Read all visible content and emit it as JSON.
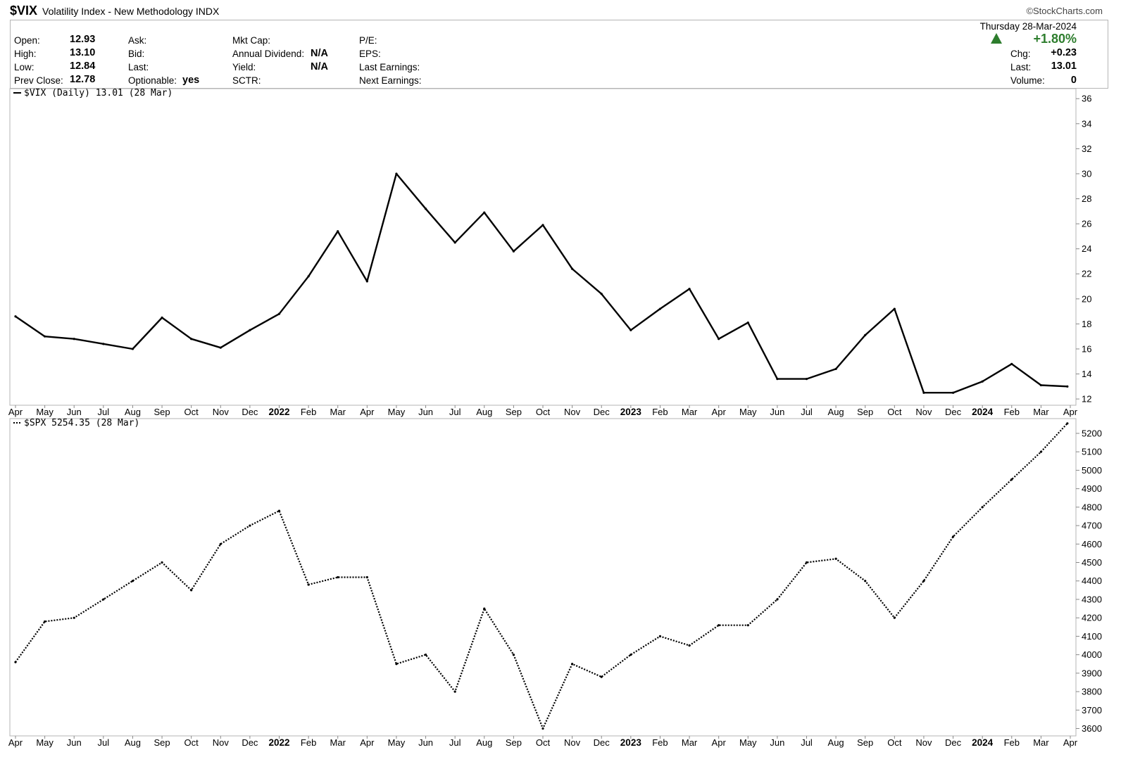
{
  "header": {
    "symbol": "$VIX",
    "description": "Volatility Index - New Methodology INDX",
    "brand": "©StockCharts.com"
  },
  "quote": {
    "date": "Thursday  28-Mar-2024",
    "change_pct": "+1.80%",
    "left": [
      {
        "label": "Open:",
        "value": "12.93"
      },
      {
        "label": "High:",
        "value": "13.10"
      },
      {
        "label": "Low:",
        "value": "12.84"
      },
      {
        "label": "Prev Close:",
        "value": "12.78"
      }
    ],
    "col2": [
      {
        "label": "Ask:",
        "value": ""
      },
      {
        "label": "Bid:",
        "value": ""
      },
      {
        "label": "Last:",
        "value": ""
      },
      {
        "label": "Optionable:",
        "value": "yes"
      }
    ],
    "col3": [
      {
        "label": "Mkt Cap:",
        "value": ""
      },
      {
        "label": "Annual Dividend:",
        "value": "N/A"
      },
      {
        "label": "Yield:",
        "value": "N/A"
      },
      {
        "label": "SCTR:",
        "value": ""
      }
    ],
    "col4": [
      {
        "label": "P/E:",
        "value": ""
      },
      {
        "label": "EPS:",
        "value": ""
      },
      {
        "label": "Last Earnings:",
        "value": ""
      },
      {
        "label": "Next Earnings:",
        "value": ""
      }
    ],
    "right": [
      {
        "label": "Chg:",
        "value": "+0.23"
      },
      {
        "label": "Last:",
        "value": "13.01"
      },
      {
        "label": "Volume:",
        "value": "0"
      }
    ]
  },
  "colors": {
    "positive": "#2d7d2d",
    "line": "#000000",
    "grid": "#b5b5b5"
  },
  "chart_data": [
    {
      "type": "line",
      "legend": "$VIX (Daily) 13.01 (28 Mar)",
      "line_style": "solid",
      "x_labels": [
        "Apr",
        "May",
        "Jun",
        "Jul",
        "Aug",
        "Sep",
        "Oct",
        "Nov",
        "Dec",
        "2022",
        "Feb",
        "Mar",
        "Apr",
        "May",
        "Jun",
        "Jul",
        "Aug",
        "Sep",
        "Oct",
        "Nov",
        "Dec",
        "2023",
        "Feb",
        "Mar",
        "Apr",
        "May",
        "Jun",
        "Jul",
        "Aug",
        "Sep",
        "Oct",
        "Nov",
        "Dec",
        "2024",
        "Feb",
        "Mar",
        "Apr"
      ],
      "year_labels": [
        "2022",
        "2023",
        "2024"
      ],
      "yticks": [
        12,
        14,
        16,
        18,
        20,
        22,
        24,
        26,
        28,
        30,
        32,
        34,
        36
      ],
      "ylim": [
        11.5,
        36.8
      ],
      "x": [
        "2021-04",
        "2021-05",
        "2021-06",
        "2021-07",
        "2021-08",
        "2021-09",
        "2021-10",
        "2021-11",
        "2021-12",
        "2022-01",
        "2022-02",
        "2022-03",
        "2022-04",
        "2022-05",
        "2022-06",
        "2022-07",
        "2022-08",
        "2022-09",
        "2022-10",
        "2022-11",
        "2022-12",
        "2023-01",
        "2023-02",
        "2023-03",
        "2023-04",
        "2023-05",
        "2023-06",
        "2023-07",
        "2023-08",
        "2023-09",
        "2023-10",
        "2023-11",
        "2023-12",
        "2024-01",
        "2024-02",
        "2024-03",
        "2024-03-28"
      ],
      "values": [
        18.6,
        17.0,
        16.8,
        16.4,
        16.0,
        18.5,
        16.8,
        16.1,
        17.5,
        18.8,
        21.8,
        25.4,
        21.4,
        30.0,
        27.2,
        24.5,
        26.9,
        23.8,
        25.9,
        22.4,
        20.4,
        17.5,
        19.2,
        20.8,
        16.8,
        18.1,
        13.6,
        13.6,
        14.4,
        17.1,
        19.2,
        12.5,
        12.5,
        13.4,
        14.8,
        13.1,
        13.0
      ]
    },
    {
      "type": "line",
      "legend": "$SPX 5254.35 (28 Mar)",
      "line_style": "dotted",
      "x_labels": [
        "Apr",
        "May",
        "Jun",
        "Jul",
        "Aug",
        "Sep",
        "Oct",
        "Nov",
        "Dec",
        "2022",
        "Feb",
        "Mar",
        "Apr",
        "May",
        "Jun",
        "Jul",
        "Aug",
        "Sep",
        "Oct",
        "Nov",
        "Dec",
        "2023",
        "Feb",
        "Mar",
        "Apr",
        "May",
        "Jun",
        "Jul",
        "Aug",
        "Sep",
        "Oct",
        "Nov",
        "Dec",
        "2024",
        "Feb",
        "Mar",
        "Apr"
      ],
      "year_labels": [
        "2022",
        "2023",
        "2024"
      ],
      "yticks": [
        3600,
        3700,
        3800,
        3900,
        4000,
        4100,
        4200,
        4300,
        4400,
        4500,
        4600,
        4700,
        4800,
        4900,
        5000,
        5100,
        5200
      ],
      "ylim": [
        3560,
        5280
      ],
      "x": [
        "2021-04",
        "2021-05",
        "2021-06",
        "2021-07",
        "2021-08",
        "2021-09",
        "2021-10",
        "2021-11",
        "2021-12",
        "2022-01",
        "2022-02",
        "2022-03",
        "2022-04",
        "2022-05",
        "2022-06",
        "2022-07",
        "2022-08",
        "2022-09",
        "2022-10",
        "2022-11",
        "2022-12",
        "2023-01",
        "2023-02",
        "2023-03",
        "2023-04",
        "2023-05",
        "2023-06",
        "2023-07",
        "2023-08",
        "2023-09",
        "2023-10",
        "2023-11",
        "2023-12",
        "2024-01",
        "2024-02",
        "2024-03",
        "2024-03-28"
      ],
      "values": [
        3960,
        4180,
        4200,
        4300,
        4400,
        4500,
        4350,
        4600,
        4700,
        4780,
        4380,
        4420,
        4420,
        3950,
        4000,
        3800,
        4250,
        4000,
        3600,
        3950,
        3880,
        4000,
        4100,
        4050,
        4160,
        4160,
        4300,
        4500,
        4520,
        4400,
        4200,
        4400,
        4640,
        4800,
        4950,
        5100,
        5254
      ]
    }
  ]
}
